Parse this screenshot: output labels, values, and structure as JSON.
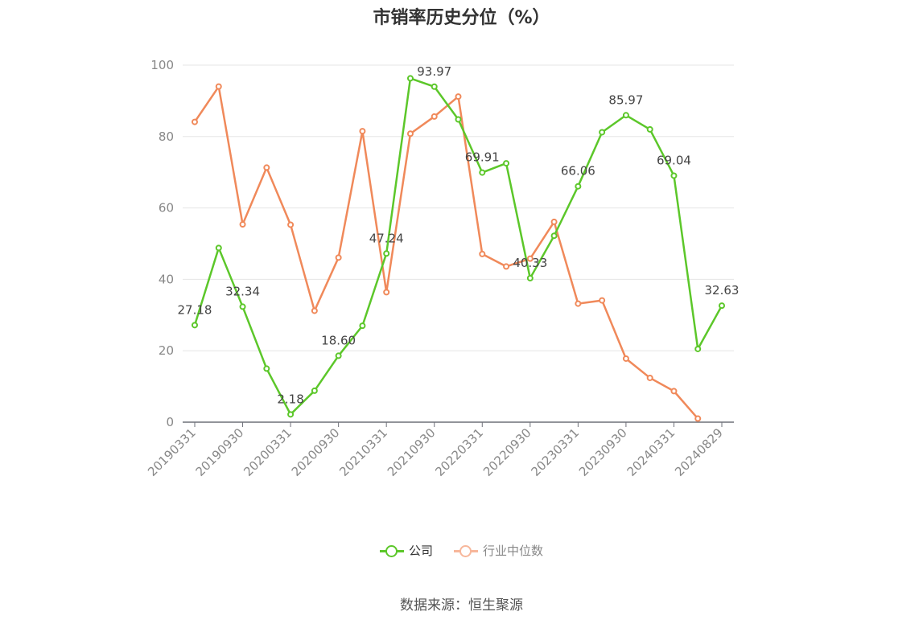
{
  "title": "市销率历史分位（%）",
  "source": "数据来源：恒生聚源",
  "legend": {
    "company": "公司",
    "industry": "行业中位数"
  },
  "colors": {
    "company": "#5cc72a",
    "industry": "#f0895a",
    "industry_legend": "#f7b79b",
    "grid": "#e6e6e6",
    "axis": "#6e7079",
    "tick_text": "#6e7079",
    "label_text": "#444444"
  },
  "chart_data": {
    "type": "line",
    "title": "市销率历史分位（%）",
    "xlabel": "",
    "ylabel": "",
    "ylim": [
      0,
      100
    ],
    "yticks": [
      0,
      20,
      40,
      60,
      80,
      100
    ],
    "grid": true,
    "legend_position": "bottom",
    "x": [
      "20190331",
      "20190630",
      "20190930",
      "20191231",
      "20200331",
      "20200630",
      "20200930",
      "20201231",
      "20210331",
      "20210630",
      "20210930",
      "20211231",
      "20220331",
      "20220630",
      "20220930",
      "20221231",
      "20230331",
      "20230630",
      "20230930",
      "20231231",
      "20240331",
      "20240630",
      "20240829"
    ],
    "x_tick_labels": [
      "20190331",
      "20190930",
      "20200331",
      "20200930",
      "20210331",
      "20210930",
      "20220331",
      "20220930",
      "20230331",
      "20230930",
      "20240331",
      "20240829"
    ],
    "series": [
      {
        "name": "公司",
        "values": [
          27.18,
          48.8,
          32.34,
          15.0,
          2.18,
          8.8,
          18.6,
          27.0,
          47.24,
          96.3,
          93.97,
          84.8,
          69.91,
          72.5,
          40.33,
          52.2,
          66.06,
          81.2,
          85.97,
          82.0,
          69.04,
          20.5,
          32.63
        ],
        "labels": [
          "27.18",
          "",
          "32.34",
          "",
          "2.18",
          "",
          "18.60",
          "",
          "47.24",
          "",
          "93.97",
          "",
          "69.91",
          "",
          "40.33",
          "",
          "66.06",
          "",
          "85.97",
          "",
          "69.04",
          "",
          "32.63"
        ]
      },
      {
        "name": "行业中位数",
        "values": [
          84.1,
          94.0,
          55.4,
          71.3,
          55.3,
          31.2,
          46.1,
          81.5,
          36.4,
          80.8,
          85.6,
          91.2,
          47.1,
          43.6,
          45.8,
          56.1,
          33.2,
          34.1,
          17.8,
          12.4,
          8.7,
          1.0,
          null
        ],
        "labels": []
      }
    ]
  }
}
